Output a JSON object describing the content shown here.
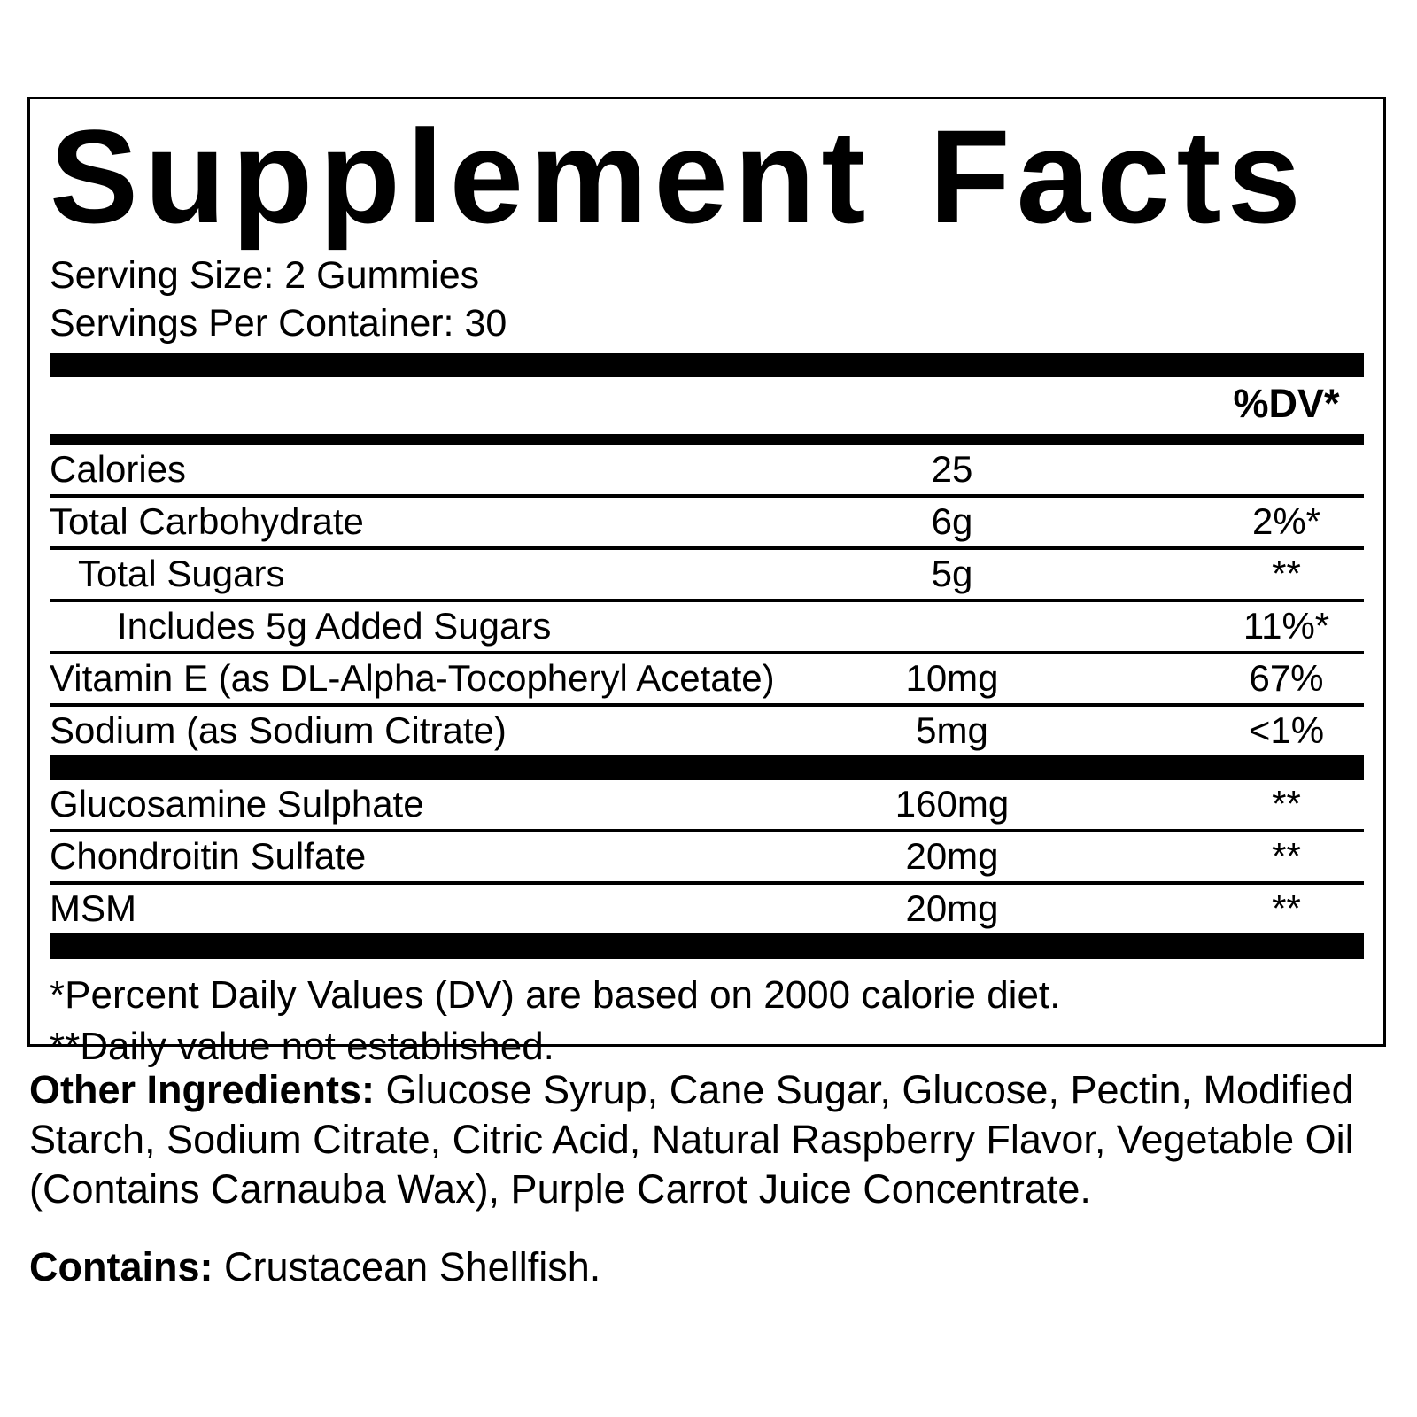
{
  "colors": {
    "text": "#000000",
    "background": "#ffffff"
  },
  "label": {
    "title": "Supplement Facts",
    "serving_size": "Serving Size: 2 Gummies",
    "servings_per_container": "Servings Per Container: 30",
    "dv_header": "%DV*",
    "rows": [
      {
        "name": "Calories",
        "amount": "25",
        "dv": ""
      },
      {
        "name": "Total Carbohydrate",
        "amount": "6g",
        "dv": "2%*"
      },
      {
        "name": "Total Sugars",
        "amount": "5g",
        "dv": "**"
      },
      {
        "name": "Includes 5g Added Sugars",
        "amount": "",
        "dv": "11%*"
      },
      {
        "name": "Vitamin E (as DL-Alpha-Tocopheryl Acetate)",
        "amount": "10mg",
        "dv": "67%"
      },
      {
        "name": "Sodium (as Sodium Citrate)",
        "amount": "5mg",
        "dv": "<1%"
      }
    ],
    "extra_rows": [
      {
        "name": "Glucosamine Sulphate",
        "amount": "160mg",
        "dv": "**"
      },
      {
        "name": "Chondroitin Sulfate",
        "amount": "20mg",
        "dv": "**"
      },
      {
        "name": "MSM",
        "amount": "20mg",
        "dv": "**"
      }
    ],
    "footnotes": [
      "*Percent Daily Values (DV) are based on 2000 calorie diet.",
      "**Daily value not established."
    ]
  },
  "other_ingredients": {
    "label": "Other Ingredients:",
    "text": " Glucose Syrup, Cane Sugar, Glucose, Pectin, Modified Starch, Sodium Citrate, Citric Acid, Natural Raspberry Flavor, Vegetable Oil (Contains Carnauba Wax), Purple Carrot Juice Concentrate."
  },
  "contains": {
    "label": "Contains:",
    "text": " Crustacean Shellfish."
  }
}
